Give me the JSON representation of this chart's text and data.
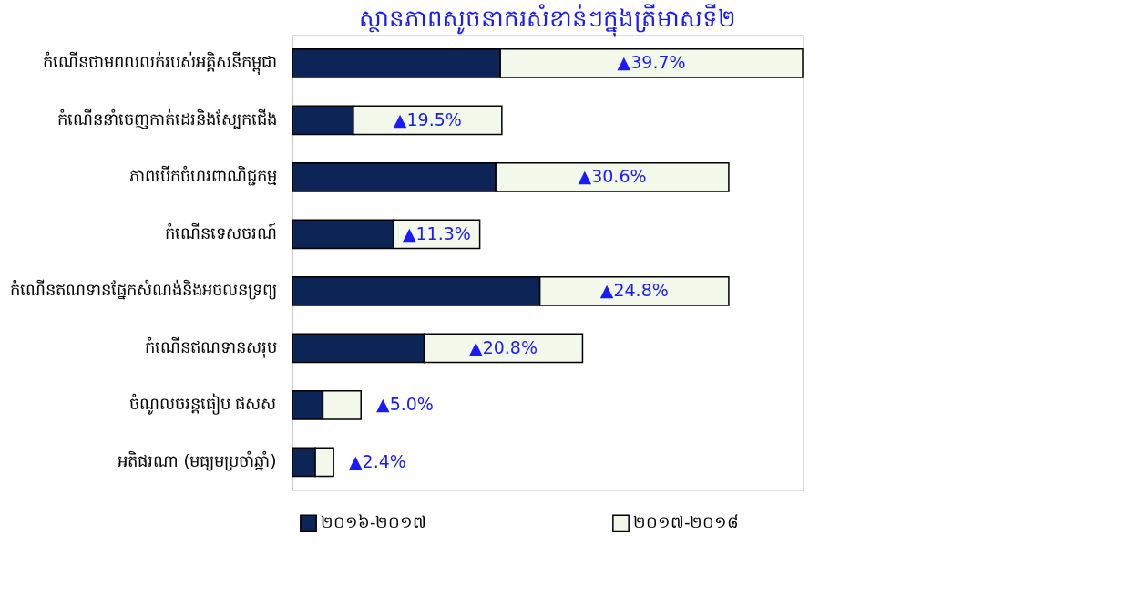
{
  "chart_data": {
    "type": "bar",
    "orientation": "horizontal",
    "stacked": true,
    "title": "ស្ថានភាពសូចនាករសំខាន់ៗក្នុងត្រីមាសទី២",
    "categories": [
      "កំណើនថាមពលលក់របស់អគ្គិសនីកម្ពុជា",
      "កំណើននាំចេញកាត់ដេរនិងស្បែកជើង",
      "ភាពបើកចំហរពាណិជ្ជកម្ម",
      "កំណើនទេសចរណ៍",
      "កំណើនឥណទានផ្នែកសំណង់និងអចលនទ្រព្យ",
      "កំណើនឥណទានសរុប",
      "ចំណូលចរន្តធៀប ផសស",
      "អតិផរណា (មធ្យមប្រចាំឆ្នាំ)"
    ],
    "series": [
      {
        "name": "២០១៦-២០១៧",
        "color": "#0d2457",
        "values": [
          27.3,
          8.0,
          26.7,
          13.3,
          32.5,
          17.3,
          4.0,
          3.0
        ]
      },
      {
        "name": "២០១៧-២០១៨",
        "color": "#f3f9ea",
        "values": [
          39.7,
          19.5,
          30.6,
          11.3,
          24.8,
          20.8,
          5.0,
          2.4
        ],
        "value_labels": [
          "▲39.7%",
          "▲19.5%",
          "▲30.6%",
          "▲11.3%",
          "▲24.8%",
          "▲20.8%",
          "▲5.0%",
          "▲2.4%"
        ]
      }
    ],
    "legend": "bottom",
    "grid": false
  }
}
